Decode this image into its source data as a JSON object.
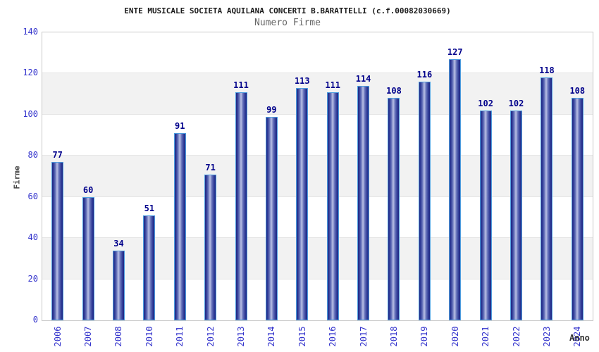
{
  "chart_data": {
    "type": "bar",
    "title": "ENTE MUSICALE SOCIETA AQUILANA CONCERTI B.BARATTELLI (c.f.00082030669)",
    "subtitle": "Numero Firme",
    "xlabel": "Anno",
    "ylabel": "Firme",
    "categories": [
      "2006",
      "2007",
      "2008",
      "2010",
      "2011",
      "2012",
      "2013",
      "2014",
      "2015",
      "2016",
      "2017",
      "2018",
      "2019",
      "2020",
      "2021",
      "2022",
      "2023",
      "2024"
    ],
    "values": [
      77,
      60,
      34,
      51,
      91,
      71,
      111,
      99,
      113,
      111,
      114,
      108,
      116,
      127,
      102,
      102,
      118,
      108
    ],
    "ylim": [
      0,
      140
    ],
    "yticks": [
      0,
      20,
      40,
      60,
      80,
      100,
      120,
      140
    ],
    "grid": "alternating horizontal bands every 20 units, light gray on white",
    "legend_position": "none",
    "bar_value_labels_shown": true,
    "x_tick_rotation_degrees": -90,
    "colors": {
      "bar_dark": "#1e2782",
      "bar_light": "#bac1e6",
      "bar_border": "#4f9fe0",
      "value_label": "#00008b",
      "tick_label": "#3333cc",
      "band_gray": "#f2f2f2",
      "plot_border": "#c9c9c9",
      "title": "#1a1a1a",
      "subtitle": "#666666",
      "axis_title": "#444444"
    }
  }
}
